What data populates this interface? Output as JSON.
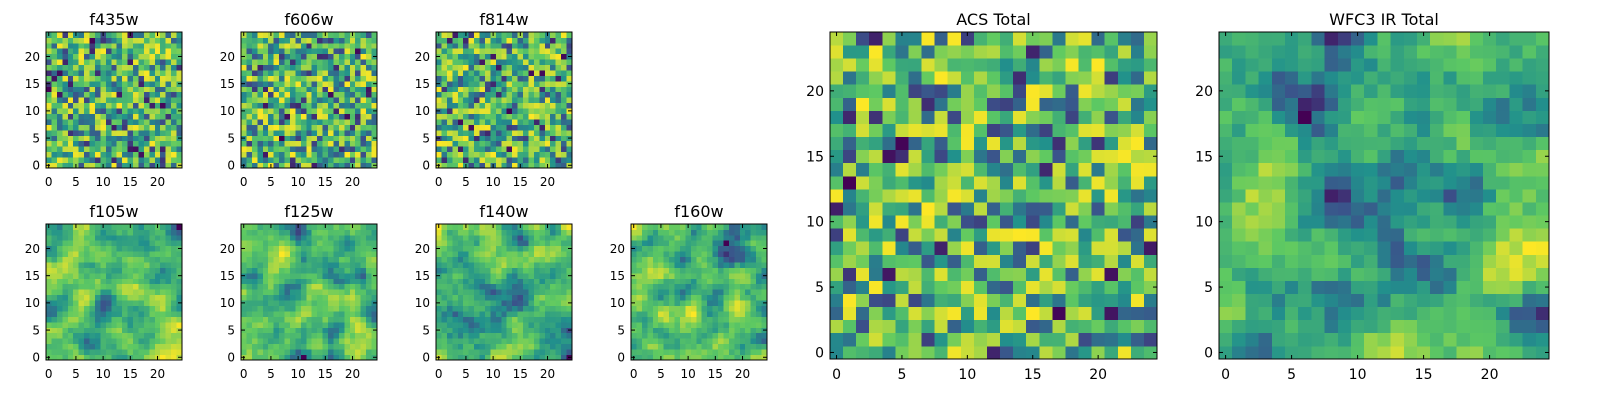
{
  "figure": {
    "colormap": "viridis",
    "colormap_stops": [
      "#440154",
      "#3b528b",
      "#21918c",
      "#5ec962",
      "#fde725"
    ]
  },
  "chart_data": [
    {
      "type": "heatmap",
      "title": "f435w",
      "size": 25,
      "xticks": [
        0,
        5,
        10,
        15,
        20
      ],
      "yticks": [
        0,
        5,
        10,
        15,
        20
      ],
      "xlim": [
        -0.5,
        24.5
      ],
      "ylim": [
        -0.5,
        24.5
      ],
      "description_kind": "pixel noise",
      "seed": 11,
      "smooth": 0
    },
    {
      "type": "heatmap",
      "title": "f606w",
      "size": 25,
      "xticks": [
        0,
        5,
        10,
        15,
        20
      ],
      "yticks": [
        0,
        5,
        10,
        15,
        20
      ],
      "xlim": [
        -0.5,
        24.5
      ],
      "ylim": [
        -0.5,
        24.5
      ],
      "seed": 23,
      "smooth": 0
    },
    {
      "type": "heatmap",
      "title": "f814w",
      "size": 25,
      "xticks": [
        0,
        5,
        10,
        15,
        20
      ],
      "yticks": [
        0,
        5,
        10,
        15,
        20
      ],
      "xlim": [
        -0.5,
        24.5
      ],
      "ylim": [
        -0.5,
        24.5
      ],
      "seed": 37,
      "smooth": 0
    },
    {
      "type": "heatmap",
      "title": "f105w",
      "size": 25,
      "xticks": [
        0,
        5,
        10,
        15,
        20
      ],
      "yticks": [
        0,
        5,
        10,
        15,
        20
      ],
      "xlim": [
        -0.5,
        24.5
      ],
      "ylim": [
        -0.5,
        24.5
      ],
      "seed": 41,
      "smooth": 2
    },
    {
      "type": "heatmap",
      "title": "f125w",
      "size": 25,
      "xticks": [
        0,
        5,
        10,
        15,
        20
      ],
      "yticks": [
        0,
        5,
        10,
        15,
        20
      ],
      "xlim": [
        -0.5,
        24.5
      ],
      "ylim": [
        -0.5,
        24.5
      ],
      "seed": 53,
      "smooth": 2
    },
    {
      "type": "heatmap",
      "title": "f140w",
      "size": 25,
      "xticks": [
        0,
        5,
        10,
        15,
        20
      ],
      "yticks": [
        0,
        5,
        10,
        15,
        20
      ],
      "xlim": [
        -0.5,
        24.5
      ],
      "ylim": [
        -0.5,
        24.5
      ],
      "seed": 67,
      "smooth": 2
    },
    {
      "type": "heatmap",
      "title": "f160w",
      "size": 25,
      "xticks": [
        0,
        5,
        10,
        15,
        20
      ],
      "yticks": [
        0,
        5,
        10,
        15,
        20
      ],
      "xlim": [
        -0.5,
        24.5
      ],
      "ylim": [
        -0.5,
        24.5
      ],
      "seed": 79,
      "smooth": 2
    },
    {
      "type": "heatmap",
      "title": "ACS Total",
      "size": 25,
      "xticks": [
        0,
        5,
        10,
        15,
        20
      ],
      "yticks": [
        0,
        5,
        10,
        15,
        20
      ],
      "xlim": [
        -0.5,
        24.5
      ],
      "ylim": [
        -0.5,
        24.5
      ],
      "seed": 97,
      "smooth": 0
    },
    {
      "type": "heatmap",
      "title": "WFC3 IR Total",
      "size": 25,
      "xticks": [
        0,
        5,
        10,
        15,
        20
      ],
      "yticks": [
        0,
        5,
        10,
        15,
        20
      ],
      "xlim": [
        -0.5,
        24.5
      ],
      "ylim": [
        -0.5,
        24.5
      ],
      "seed": 131,
      "smooth": 3
    }
  ]
}
